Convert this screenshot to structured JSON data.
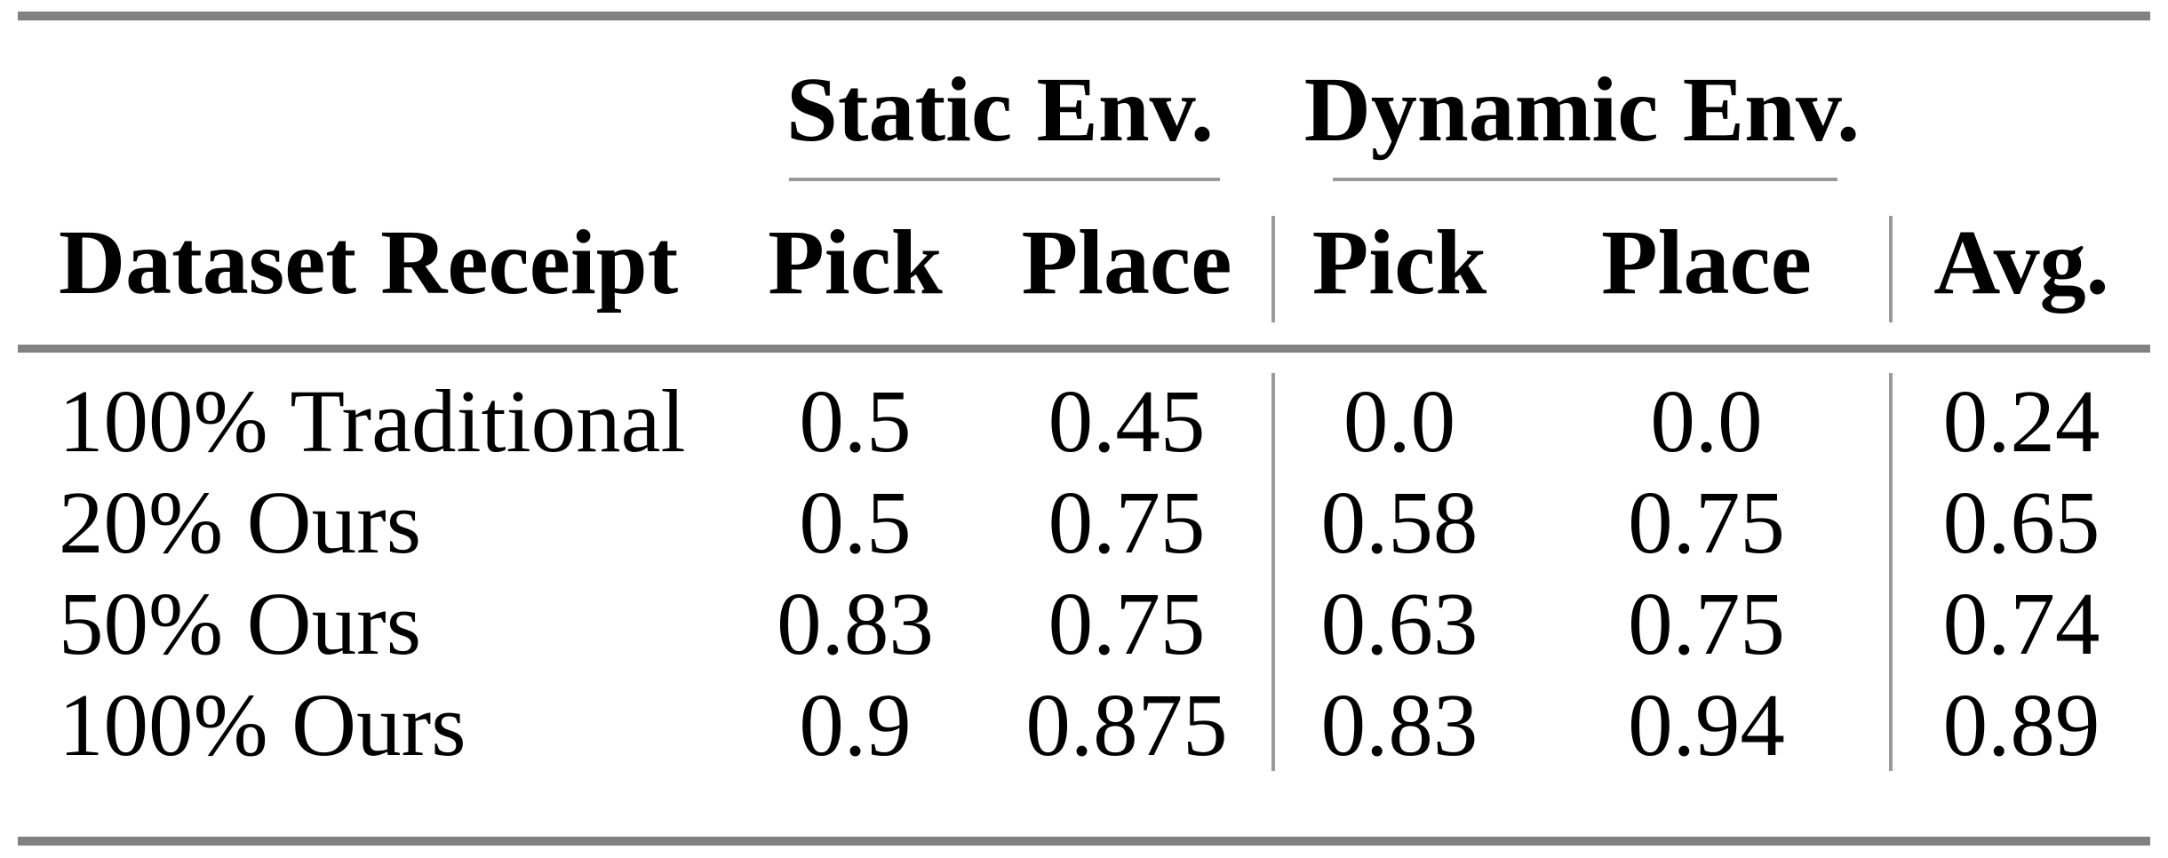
{
  "table": {
    "group_headers": [
      "Static Env.",
      "Dynamic Env."
    ],
    "columns": [
      "Dataset Receipt",
      "Pick",
      "Place",
      "Pick",
      "Place",
      "Avg."
    ],
    "rows": [
      {
        "label": "100% Traditional",
        "values": [
          "0.5",
          "0.45",
          "0.0",
          "0.0",
          "0.24"
        ]
      },
      {
        "label": "20% Ours",
        "values": [
          "0.5",
          "0.75",
          "0.58",
          "0.75",
          "0.65"
        ]
      },
      {
        "label": "50% Ours",
        "values": [
          "0.83",
          "0.75",
          "0.63",
          "0.75",
          "0.74"
        ]
      },
      {
        "label": "100% Ours",
        "values": [
          "0.9",
          "0.875",
          "0.83",
          "0.94",
          "0.89"
        ]
      }
    ],
    "colors": {
      "thick_rule": "#818181",
      "thin_rule": "#9a9a9a",
      "text": "#000000",
      "background": "#ffffff"
    }
  }
}
